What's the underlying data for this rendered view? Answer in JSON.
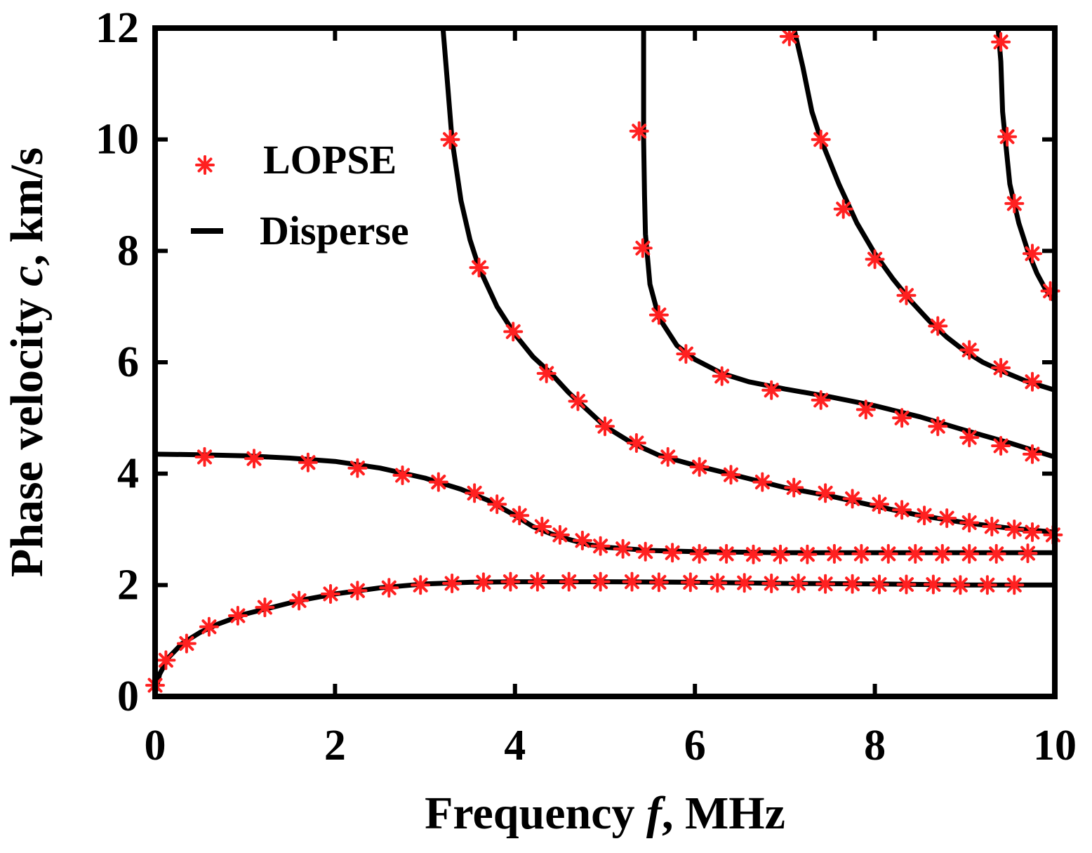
{
  "colors": {
    "curve": "#000000",
    "marker": "#ff2020",
    "axis": "#000000"
  },
  "chart_data": {
    "type": "line",
    "title": "",
    "xlabel": "Frequency f, MHz",
    "xlabel_parts": [
      "Frequency ",
      "f",
      ", MHz"
    ],
    "ylabel": "Phase velocity c, km/s",
    "ylabel_parts": [
      "Phase velocity ",
      "c",
      ", km/s"
    ],
    "xlim": [
      0,
      10
    ],
    "ylim": [
      0,
      12
    ],
    "xticks": [
      "0",
      "2",
      "4",
      "6",
      "8",
      "10"
    ],
    "yticks": [
      "0",
      "2",
      "4",
      "6",
      "8",
      "10",
      "12"
    ],
    "grid": false,
    "legend": {
      "placement": "top-left",
      "entries": [
        {
          "label": "LOPSE",
          "style": "marker",
          "symbol": "*"
        },
        {
          "label": "Disperse",
          "style": "line"
        }
      ]
    },
    "series": [
      {
        "name": "Disperse",
        "kind": "line",
        "curves": [
          [
            [
              0,
              0.05
            ],
            [
              0.05,
              0.4
            ],
            [
              0.15,
              0.7
            ],
            [
              0.3,
              0.95
            ],
            [
              0.5,
              1.15
            ],
            [
              0.7,
              1.3
            ],
            [
              1,
              1.48
            ],
            [
              1.3,
              1.6
            ],
            [
              1.6,
              1.72
            ],
            [
              2,
              1.84
            ],
            [
              2.5,
              1.95
            ],
            [
              3,
              2.02
            ],
            [
              3.5,
              2.05
            ],
            [
              4,
              2.06
            ],
            [
              5,
              2.06
            ],
            [
              6,
              2.05
            ],
            [
              7,
              2.03
            ],
            [
              8,
              2.02
            ],
            [
              9,
              2.0
            ],
            [
              10,
              2.0
            ]
          ],
          [
            [
              0,
              4.35
            ],
            [
              0.5,
              4.34
            ],
            [
              1,
              4.32
            ],
            [
              1.5,
              4.28
            ],
            [
              2,
              4.22
            ],
            [
              2.5,
              4.1
            ],
            [
              3,
              3.92
            ],
            [
              3.4,
              3.72
            ],
            [
              3.7,
              3.52
            ],
            [
              4,
              3.25
            ],
            [
              4.2,
              3.05
            ],
            [
              4.4,
              2.92
            ],
            [
              4.6,
              2.82
            ],
            [
              4.8,
              2.73
            ],
            [
              5,
              2.68
            ],
            [
              5.5,
              2.62
            ],
            [
              6,
              2.6
            ],
            [
              7,
              2.58
            ],
            [
              8,
              2.58
            ],
            [
              9,
              2.58
            ],
            [
              10,
              2.58
            ]
          ],
          [
            [
              3.2,
              12
            ],
            [
              3.25,
              11
            ],
            [
              3.3,
              10
            ],
            [
              3.4,
              8.9
            ],
            [
              3.5,
              8.2
            ],
            [
              3.6,
              7.7
            ],
            [
              3.8,
              7.0
            ],
            [
              4,
              6.5
            ],
            [
              4.2,
              6.1
            ],
            [
              4.4,
              5.8
            ],
            [
              4.6,
              5.45
            ],
            [
              4.8,
              5.15
            ],
            [
              5,
              4.85
            ],
            [
              5.3,
              4.55
            ],
            [
              5.6,
              4.33
            ],
            [
              6,
              4.15
            ],
            [
              6.5,
              3.95
            ],
            [
              7,
              3.75
            ],
            [
              7.5,
              3.6
            ],
            [
              8,
              3.42
            ],
            [
              8.5,
              3.25
            ],
            [
              9,
              3.12
            ],
            [
              9.5,
              3.02
            ],
            [
              10,
              2.95
            ]
          ],
          [
            [
              5.43,
              12
            ],
            [
              5.43,
              10
            ],
            [
              5.44,
              9
            ],
            [
              5.45,
              8.3
            ],
            [
              5.5,
              7.4
            ],
            [
              5.6,
              6.8
            ],
            [
              5.8,
              6.3
            ],
            [
              6,
              6.05
            ],
            [
              6.3,
              5.8
            ],
            [
              6.6,
              5.65
            ],
            [
              7,
              5.52
            ],
            [
              7.5,
              5.38
            ],
            [
              8,
              5.22
            ],
            [
              8.5,
              5.02
            ],
            [
              9,
              4.78
            ],
            [
              9.5,
              4.55
            ],
            [
              10,
              4.3
            ]
          ],
          [
            [
              7.1,
              12
            ],
            [
              7.2,
              11.3
            ],
            [
              7.3,
              10.5
            ],
            [
              7.4,
              10
            ],
            [
              7.6,
              9.2
            ],
            [
              7.8,
              8.5
            ],
            [
              8,
              7.95
            ],
            [
              8.2,
              7.5
            ],
            [
              8.4,
              7.1
            ],
            [
              8.6,
              6.75
            ],
            [
              8.8,
              6.45
            ],
            [
              9,
              6.2
            ],
            [
              9.2,
              6.0
            ],
            [
              9.4,
              5.85
            ],
            [
              9.7,
              5.65
            ],
            [
              10,
              5.5
            ]
          ],
          [
            [
              9.37,
              12
            ],
            [
              9.4,
              11.4
            ],
            [
              9.42,
              10.5
            ],
            [
              9.45,
              10
            ],
            [
              9.5,
              9.2
            ],
            [
              9.6,
              8.5
            ],
            [
              9.7,
              8.0
            ],
            [
              9.8,
              7.6
            ],
            [
              9.9,
              7.3
            ],
            [
              10,
              7.1
            ]
          ]
        ]
      },
      {
        "name": "LOPSE",
        "kind": "marker",
        "curves": [
          [
            [
              0,
              0.2
            ],
            [
              0.12,
              0.65
            ],
            [
              0.35,
              0.95
            ],
            [
              0.6,
              1.25
            ],
            [
              0.92,
              1.45
            ],
            [
              1.22,
              1.6
            ],
            [
              1.6,
              1.72
            ],
            [
              1.95,
              1.84
            ],
            [
              2.25,
              1.9
            ],
            [
              2.6,
              1.95
            ],
            [
              2.95,
              2.0
            ],
            [
              3.3,
              2.03
            ],
            [
              3.65,
              2.05
            ],
            [
              3.95,
              2.06
            ],
            [
              4.25,
              2.06
            ],
            [
              4.6,
              2.06
            ],
            [
              4.95,
              2.06
            ],
            [
              5.3,
              2.06
            ],
            [
              5.6,
              2.05
            ],
            [
              5.95,
              2.05
            ],
            [
              6.25,
              2.04
            ],
            [
              6.55,
              2.04
            ],
            [
              6.85,
              2.03
            ],
            [
              7.15,
              2.03
            ],
            [
              7.45,
              2.02
            ],
            [
              7.75,
              2.02
            ],
            [
              8.05,
              2.01
            ],
            [
              8.35,
              2.01
            ],
            [
              8.65,
              2.01
            ],
            [
              8.95,
              2.0
            ],
            [
              9.25,
              2.0
            ],
            [
              9.55,
              2.0
            ]
          ],
          [
            [
              0.55,
              4.3
            ],
            [
              1.1,
              4.27
            ],
            [
              1.7,
              4.2
            ],
            [
              2.25,
              4.1
            ],
            [
              2.75,
              3.97
            ],
            [
              3.15,
              3.85
            ],
            [
              3.55,
              3.65
            ],
            [
              3.8,
              3.45
            ],
            [
              4.05,
              3.25
            ],
            [
              4.3,
              3.05
            ],
            [
              4.5,
              2.9
            ],
            [
              4.75,
              2.8
            ],
            [
              4.95,
              2.7
            ],
            [
              5.2,
              2.65
            ],
            [
              5.45,
              2.6
            ],
            [
              5.75,
              2.58
            ],
            [
              6.05,
              2.56
            ],
            [
              6.35,
              2.56
            ],
            [
              6.65,
              2.55
            ],
            [
              6.95,
              2.55
            ],
            [
              7.25,
              2.55
            ],
            [
              7.55,
              2.56
            ],
            [
              7.85,
              2.56
            ],
            [
              8.15,
              2.56
            ],
            [
              8.45,
              2.56
            ],
            [
              8.75,
              2.56
            ],
            [
              9.05,
              2.56
            ],
            [
              9.35,
              2.56
            ],
            [
              9.7,
              2.57
            ]
          ],
          [
            [
              3.28,
              10.0
            ],
            [
              3.6,
              7.7
            ],
            [
              3.98,
              6.55
            ],
            [
              4.35,
              5.8
            ],
            [
              4.7,
              5.3
            ],
            [
              5.0,
              4.85
            ],
            [
              5.35,
              4.55
            ],
            [
              5.7,
              4.3
            ],
            [
              6.05,
              4.12
            ],
            [
              6.4,
              3.98
            ],
            [
              6.75,
              3.85
            ],
            [
              7.1,
              3.75
            ],
            [
              7.45,
              3.65
            ],
            [
              7.75,
              3.55
            ],
            [
              8.05,
              3.45
            ],
            [
              8.3,
              3.35
            ],
            [
              8.55,
              3.25
            ],
            [
              8.8,
              3.2
            ],
            [
              9.05,
              3.12
            ],
            [
              9.3,
              3.05
            ],
            [
              9.55,
              3.0
            ],
            [
              9.75,
              2.95
            ],
            [
              9.98,
              2.9
            ]
          ],
          [
            [
              5.38,
              10.15
            ],
            [
              5.42,
              8.05
            ],
            [
              5.6,
              6.85
            ],
            [
              5.9,
              6.15
            ],
            [
              6.3,
              5.75
            ],
            [
              6.85,
              5.5
            ],
            [
              7.4,
              5.32
            ],
            [
              7.9,
              5.15
            ],
            [
              8.3,
              5.0
            ],
            [
              8.7,
              4.85
            ],
            [
              9.05,
              4.65
            ],
            [
              9.4,
              4.5
            ],
            [
              9.75,
              4.35
            ]
          ],
          [
            [
              7.05,
              11.85
            ],
            [
              7.4,
              10.0
            ],
            [
              7.65,
              8.75
            ],
            [
              8.0,
              7.85
            ],
            [
              8.35,
              7.2
            ],
            [
              8.7,
              6.65
            ],
            [
              9.05,
              6.22
            ],
            [
              9.4,
              5.9
            ],
            [
              9.75,
              5.65
            ]
          ],
          [
            [
              9.4,
              11.75
            ],
            [
              9.47,
              10.05
            ],
            [
              9.55,
              8.85
            ],
            [
              9.75,
              7.95
            ],
            [
              9.95,
              7.28
            ]
          ]
        ]
      }
    ]
  }
}
